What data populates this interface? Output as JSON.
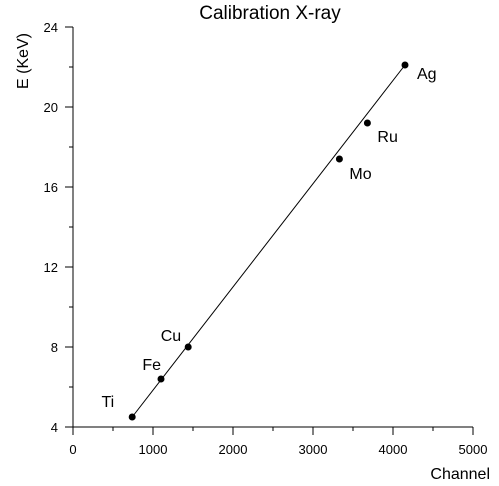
{
  "chart_data": {
    "type": "scatter",
    "title": "Calibration X-ray",
    "xlabel": "Channel",
    "ylabel": "E (KeV)",
    "xlim": [
      0,
      5000
    ],
    "ylim": [
      4,
      24
    ],
    "x_ticks": [
      0,
      1000,
      2000,
      3000,
      4000,
      5000
    ],
    "y_ticks": [
      4,
      8,
      12,
      16,
      20,
      24
    ],
    "x_minor_step": 500,
    "y_minor_step": 2,
    "grid": false,
    "legend": "none",
    "series": [
      {
        "points": [
          {
            "label": "Ti",
            "x": 740,
            "y": 4.5
          },
          {
            "label": "Fe",
            "x": 1100,
            "y": 6.4
          },
          {
            "label": "Cu",
            "x": 1440,
            "y": 8.0
          },
          {
            "label": "Mo",
            "x": 3330,
            "y": 17.4
          },
          {
            "label": "Ru",
            "x": 3680,
            "y": 19.2
          },
          {
            "label": "Ag",
            "x": 4150,
            "y": 22.1
          }
        ]
      }
    ],
    "fit_line": {
      "x": [
        740,
        4150
      ],
      "y": [
        4.5,
        22.1
      ]
    }
  }
}
